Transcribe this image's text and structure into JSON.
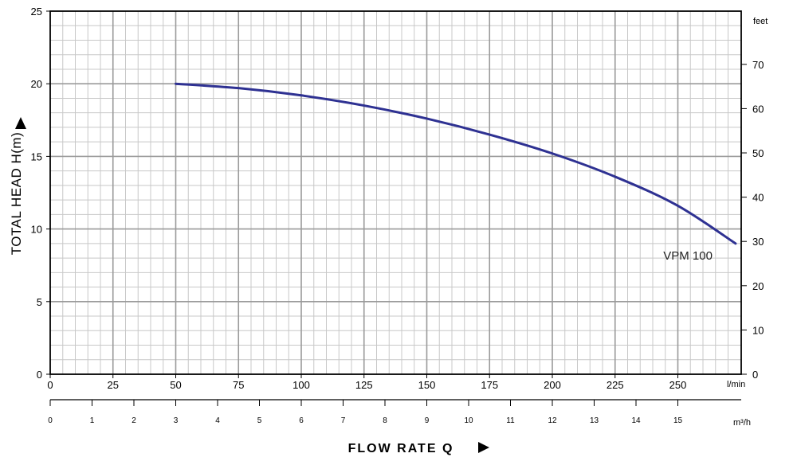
{
  "chart_data": {
    "type": "line",
    "ylabel": "TOTAL HEAD H(m)",
    "xlabel": "FLOW  RATE Q",
    "xlim": [
      0,
      275
    ],
    "ylim": [
      0,
      25
    ],
    "x_ticks": [
      0,
      25,
      50,
      75,
      100,
      125,
      150,
      175,
      200,
      225,
      250
    ],
    "x_ticks_m3h": [
      0,
      1,
      2,
      3,
      4,
      5,
      6,
      7,
      8,
      9,
      10,
      11,
      12,
      13,
      14,
      15
    ],
    "y_ticks": [
      0,
      5,
      10,
      15,
      20,
      25
    ],
    "y2_ticks_feet": [
      0,
      10,
      20,
      30,
      40,
      50,
      60,
      70
    ],
    "x_unit": "l/min",
    "x2_unit": "m³/h",
    "y2_unit": "feet",
    "grid": true,
    "colors": {
      "curve": "#2e3192",
      "major_grid": "#9a9a9a",
      "minor_grid": "#c8c8c8"
    },
    "series": [
      {
        "name": "VPM 100",
        "x": [
          50,
          75,
          100,
          125,
          150,
          175,
          200,
          225,
          250,
          273
        ],
        "y": [
          20,
          19.7,
          19.2,
          18.5,
          17.6,
          16.5,
          15.2,
          13.6,
          11.6,
          9.0
        ]
      }
    ]
  }
}
